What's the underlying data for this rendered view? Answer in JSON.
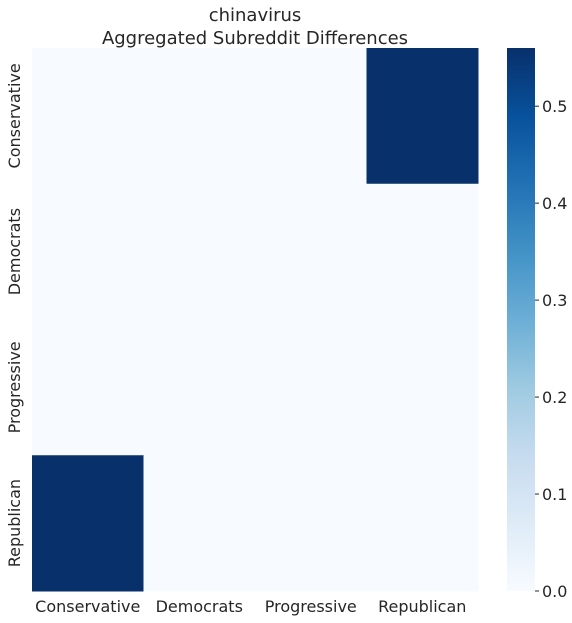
{
  "chart_data": {
    "type": "heatmap",
    "title_lines": [
      "chinavirus",
      "Aggregated Subreddit Differences"
    ],
    "xlabel": "",
    "ylabel": "",
    "x_categories": [
      "Conservative",
      "Democrats",
      "Progressive",
      "Republican"
    ],
    "y_categories": [
      "Conservative",
      "Democrats",
      "Progressive",
      "Republican"
    ],
    "values": [
      [
        0,
        0,
        0,
        0.56
      ],
      [
        0,
        0,
        0,
        0
      ],
      [
        0,
        0,
        0,
        0
      ],
      [
        0.56,
        0,
        0,
        0
      ]
    ],
    "colormap": "Blues",
    "colormap_stops": [
      "#f7fbff",
      "#deebf7",
      "#c6dbef",
      "#9ecae1",
      "#6baed6",
      "#4292c6",
      "#2171b5",
      "#08519c",
      "#08306b"
    ],
    "vmin": 0,
    "vmax": 0.56,
    "colorbar_ticks": [
      "0.0",
      "0.1",
      "0.2",
      "0.3",
      "0.4",
      "0.5"
    ]
  }
}
